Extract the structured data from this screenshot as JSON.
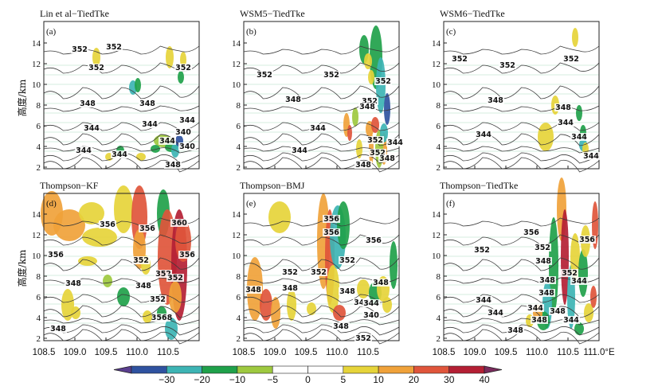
{
  "chart_data": {
    "type": "contour_panels",
    "colorbar": {
      "ticks": [
        "−30",
        "−20",
        "−10",
        "−5",
        "0",
        "5",
        "10",
        "20",
        "30",
        "40"
      ],
      "colors": [
        "#2f52a0",
        "#3db4b4",
        "#1fa14a",
        "#9ec93f",
        "#ffffff",
        "#ffffff",
        "#e6d43a",
        "#f0a23a",
        "#e0553b",
        "#b41f34"
      ]
    },
    "x_ticks": [
      "108.5",
      "109.0",
      "109.5",
      "110.0",
      "110.5",
      "111.0°E"
    ],
    "y_ticks": [
      "2",
      "4",
      "6",
      "8",
      "10",
      "12",
      "14"
    ],
    "ylabel": "高度/km",
    "panels": [
      {
        "title": "Lin et al−TiedTke",
        "label": "(a)",
        "contour_labels": [
          "352",
          "352",
          "352",
          "352",
          "348",
          "348",
          "344",
          "344",
          "344",
          "344",
          "344",
          "340",
          "340",
          "344",
          "348"
        ]
      },
      {
        "title": "WSM5−TiedTke",
        "label": "(b)",
        "contour_labels": [
          "352",
          "352",
          "352",
          "348",
          "352",
          "348",
          "344",
          "344",
          "352",
          "352",
          "344",
          "348",
          "348"
        ]
      },
      {
        "title": "WSM6−TiedTke",
        "label": "(c)",
        "contour_labels": [
          "352",
          "352",
          "352",
          "348",
          "348",
          "344",
          "344",
          "344",
          "344"
        ]
      },
      {
        "title": "Thompson−KF",
        "label": "(d)",
        "contour_labels": [
          "356",
          "356",
          "360",
          "356",
          "356",
          "352",
          "352",
          "348",
          "348",
          "352",
          "352",
          "348",
          "3568"
        ]
      },
      {
        "title": "Thompson−BMJ",
        "label": "(e)",
        "contour_labels": [
          "356",
          "356",
          "356",
          "352",
          "352",
          "352",
          "348",
          "348",
          "348",
          "348",
          "344",
          "344",
          "340",
          "348",
          "352"
        ]
      },
      {
        "title": "Thompson−TiedTke",
        "label": "(f)",
        "contour_labels": [
          "356",
          "356",
          "352",
          "352",
          "352",
          "348",
          "348",
          "348",
          "344",
          "344",
          "344",
          "344",
          "348",
          "348",
          "344",
          "348"
        ]
      }
    ]
  }
}
